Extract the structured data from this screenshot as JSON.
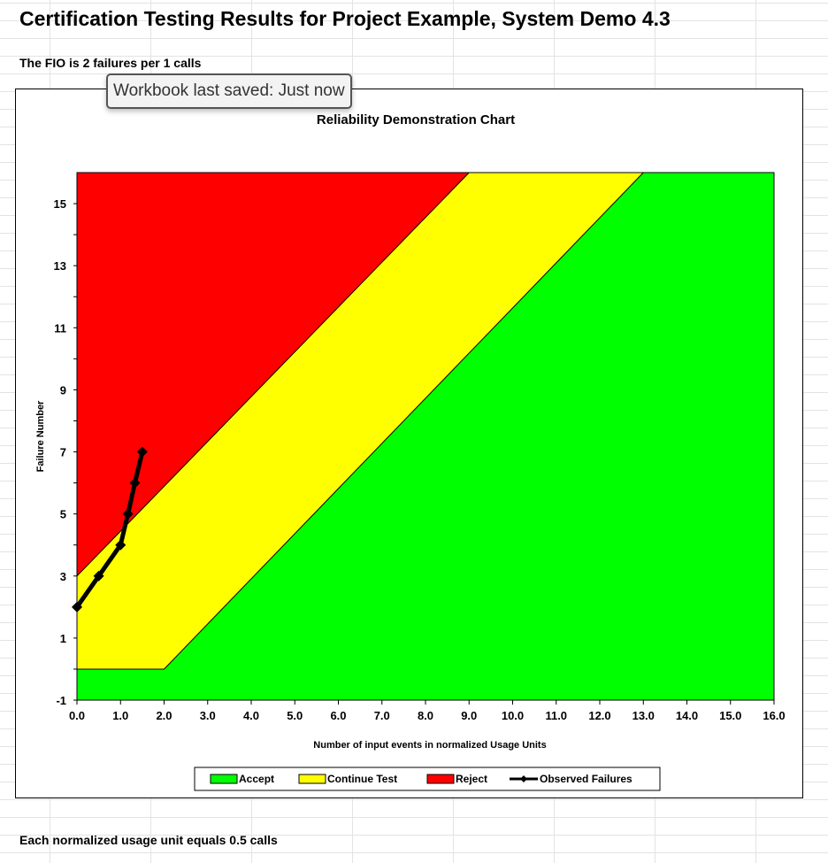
{
  "sheet": {
    "title": "Certification Testing Results for Project Example, System Demo 4.3",
    "fio_text": "The FIO is 2 failures per 1 calls",
    "footnote": "Each normalized usage unit equals 0.5 calls"
  },
  "status_tooltip": "Workbook last saved: Just now",
  "chart_data": {
    "type": "area",
    "title": "Reliability Demonstration Chart",
    "xlabel": "Number of input events in normalized Usage Units",
    "ylabel": "Failure Number",
    "xlim": [
      0,
      16
    ],
    "ylim": [
      -1,
      16
    ],
    "x_ticks": [
      "0.0",
      "1.0",
      "2.0",
      "3.0",
      "4.0",
      "5.0",
      "6.0",
      "7.0",
      "8.0",
      "9.0",
      "10.0",
      "11.0",
      "12.0",
      "13.0",
      "14.0",
      "15.0",
      "16.0"
    ],
    "y_ticks": [
      "-1",
      "1",
      "3",
      "5",
      "7",
      "9",
      "11",
      "13",
      "15"
    ],
    "legend_position": "bottom",
    "regions": [
      {
        "name": "Accept",
        "color": "#00ff00"
      },
      {
        "name": "Continue Test",
        "color": "#ffff00"
      },
      {
        "name": "Reject",
        "color": "#ff0000"
      }
    ],
    "reject_boundary": [
      [
        0,
        3
      ],
      [
        9,
        16
      ]
    ],
    "accept_boundary": [
      [
        0,
        0
      ],
      [
        2,
        0
      ],
      [
        13,
        16
      ]
    ],
    "series": [
      {
        "name": "Observed Failures",
        "color": "#000000",
        "x": [
          0.0,
          0.5,
          1.0,
          1.17,
          1.33,
          1.5
        ],
        "y": [
          2,
          3,
          4,
          5,
          6,
          7
        ]
      }
    ]
  }
}
